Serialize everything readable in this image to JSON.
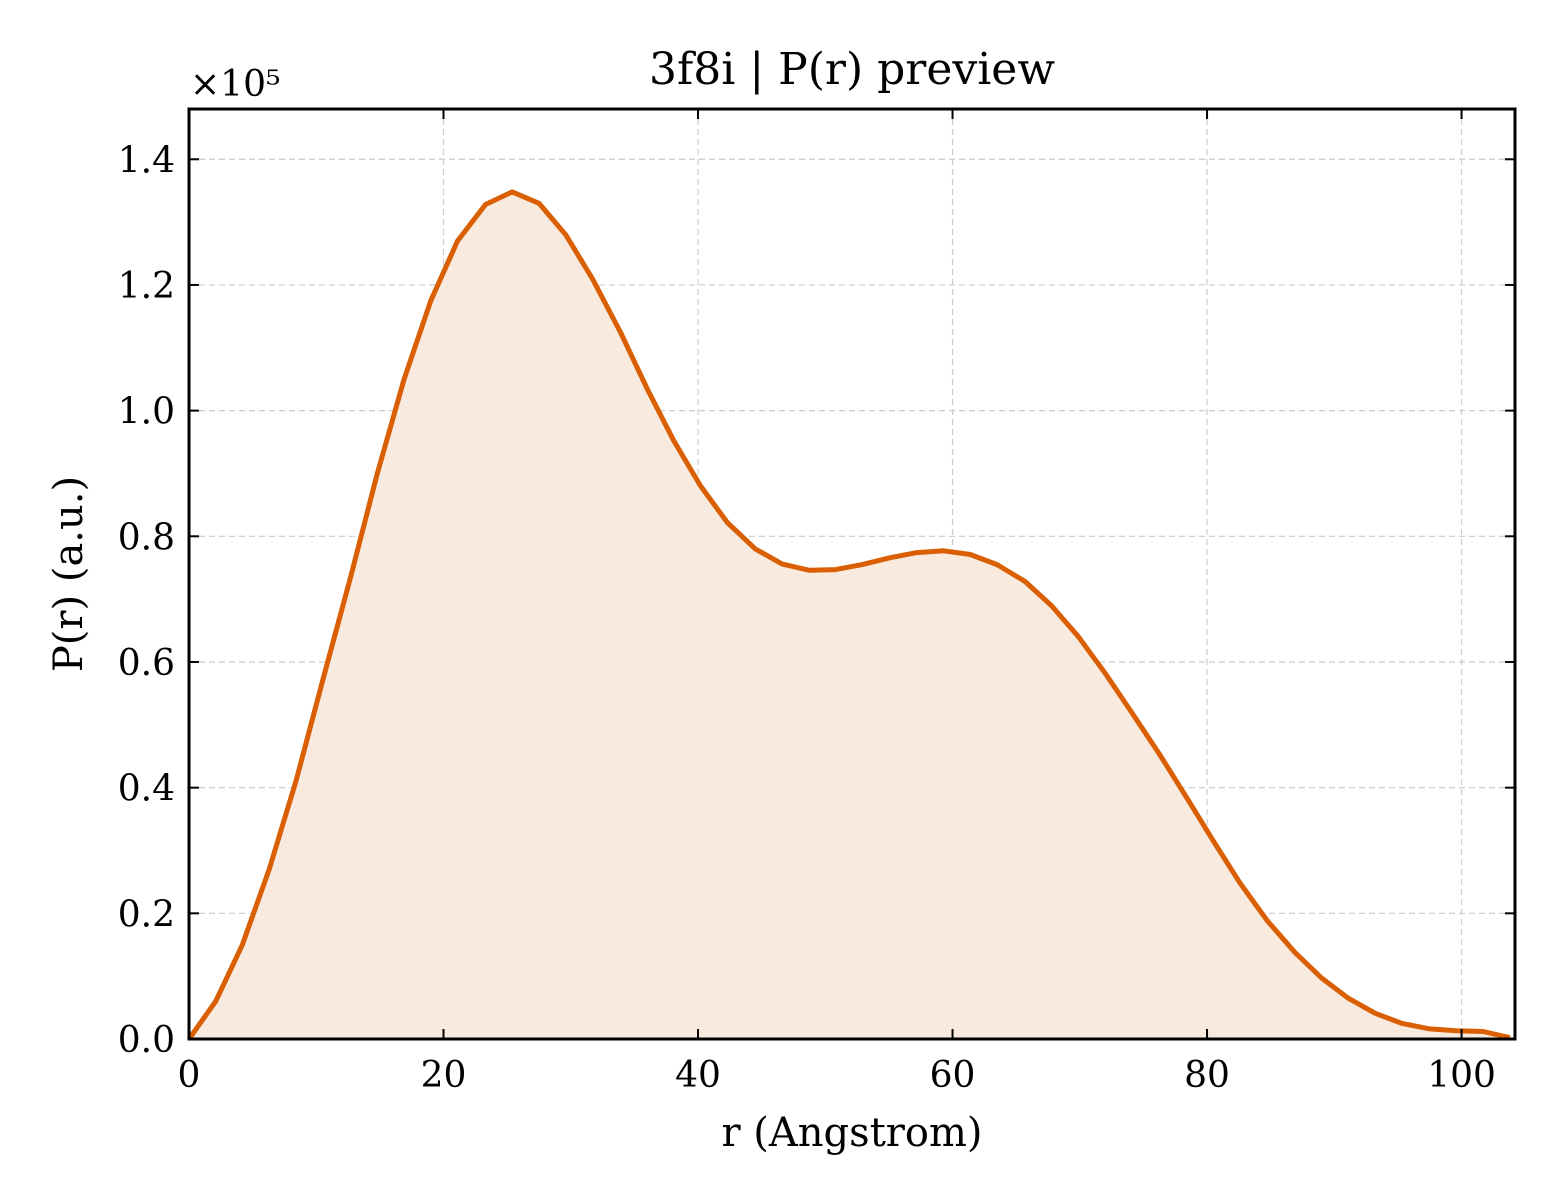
{
  "chart_data": {
    "type": "area",
    "title": "3f8i | P(r) preview",
    "xlabel": "r (Angstrom)",
    "ylabel": "P(r) (a.u.)",
    "y_multiplier": "×10⁵",
    "xlim": [
      0,
      104.2
    ],
    "ylim": [
      0,
      1.48
    ],
    "x_ticks": [
      0,
      20,
      40,
      60,
      80,
      100
    ],
    "y_ticks": [
      0.0,
      0.2,
      0.4,
      0.6,
      0.8,
      1.0,
      1.2,
      1.4
    ],
    "x_tick_labels": [
      "0",
      "20",
      "40",
      "60",
      "80",
      "100"
    ],
    "y_tick_labels": [
      "0.0",
      "0.2",
      "0.4",
      "0.6",
      "0.8",
      "1.0",
      "1.2",
      "1.4"
    ],
    "grid": true,
    "colors": {
      "line": "#d95f02",
      "fill": "#f9eae0"
    },
    "series": [
      {
        "x": [
          0,
          2.1,
          4.2,
          6.3,
          8.4,
          10.5,
          12.7,
          14.8,
          16.9,
          19.0,
          21.1,
          23.3,
          25.4,
          27.5,
          29.6,
          31.7,
          33.9,
          36.0,
          38.1,
          40.2,
          42.3,
          44.5,
          46.6,
          48.7,
          50.8,
          52.9,
          55.1,
          57.2,
          59.3,
          61.4,
          63.5,
          65.7,
          67.8,
          69.9,
          72.0,
          74.1,
          76.3,
          78.4,
          80.5,
          82.6,
          84.7,
          86.9,
          89.0,
          91.1,
          93.2,
          95.3,
          97.5,
          99.6,
          101.7,
          103.8
        ],
        "values": [
          0.0,
          0.06,
          0.15,
          0.27,
          0.41,
          0.57,
          0.735,
          0.9,
          1.05,
          1.175,
          1.27,
          1.328,
          1.348,
          1.33,
          1.28,
          1.21,
          1.125,
          1.035,
          0.952,
          0.88,
          0.822,
          0.78,
          0.756,
          0.746,
          0.747,
          0.755,
          0.766,
          0.774,
          0.777,
          0.771,
          0.755,
          0.728,
          0.689,
          0.64,
          0.582,
          0.519,
          0.452,
          0.384,
          0.315,
          0.248,
          0.189,
          0.138,
          0.097,
          0.065,
          0.041,
          0.025,
          0.016,
          0.013,
          0.012,
          0.002
        ]
      }
    ]
  }
}
